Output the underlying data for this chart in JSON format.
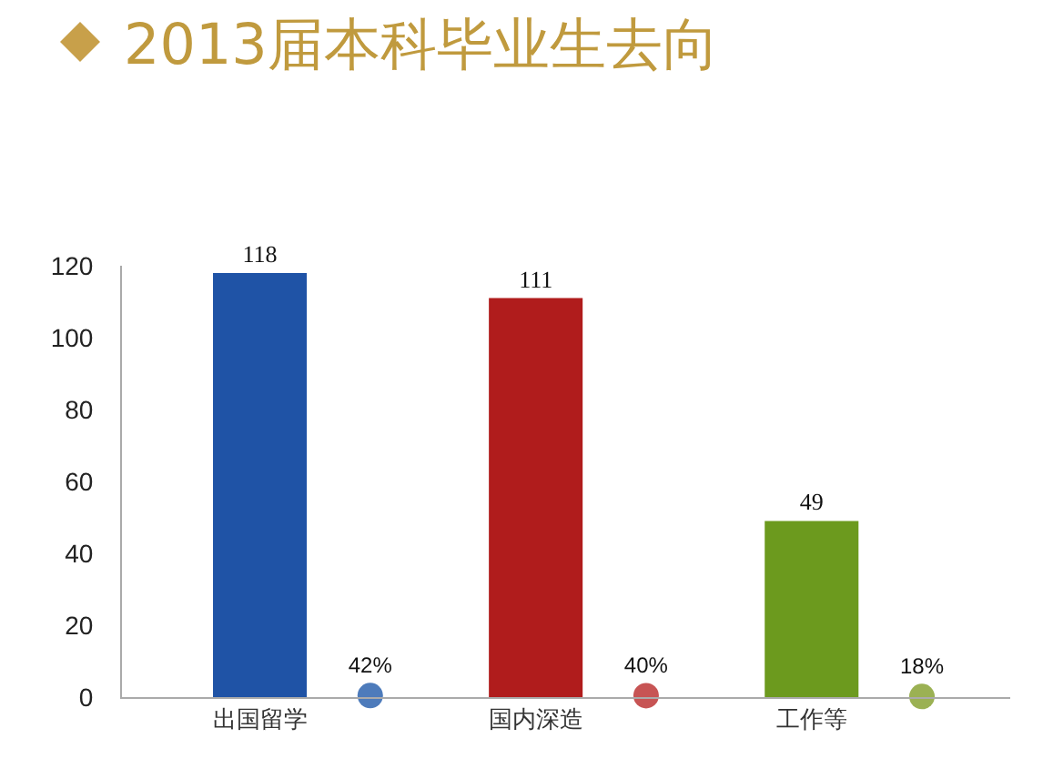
{
  "chart_data": {
    "type": "bar",
    "title": "2013届本科毕业生去向",
    "categories": [
      "出国留学",
      "国内深造",
      "工作等"
    ],
    "ylim": [
      0,
      120
    ],
    "yticks": [
      0,
      20,
      40,
      60,
      80,
      100,
      120
    ],
    "series": [
      {
        "colors": [
          "#1f53a6",
          "#b01c1c",
          "#6c9a1e"
        ],
        "values": [
          118,
          111,
          49
        ],
        "value_labels": [
          "118",
          "111",
          "49"
        ]
      },
      {
        "type": "scatter",
        "marker": "circle",
        "colors": [
          "#4d7bbb",
          "#c75454",
          "#9bb153"
        ],
        "values": [
          0.42,
          0.4,
          0.18
        ],
        "value_labels": [
          "42%",
          "40%",
          "18%"
        ]
      }
    ]
  }
}
